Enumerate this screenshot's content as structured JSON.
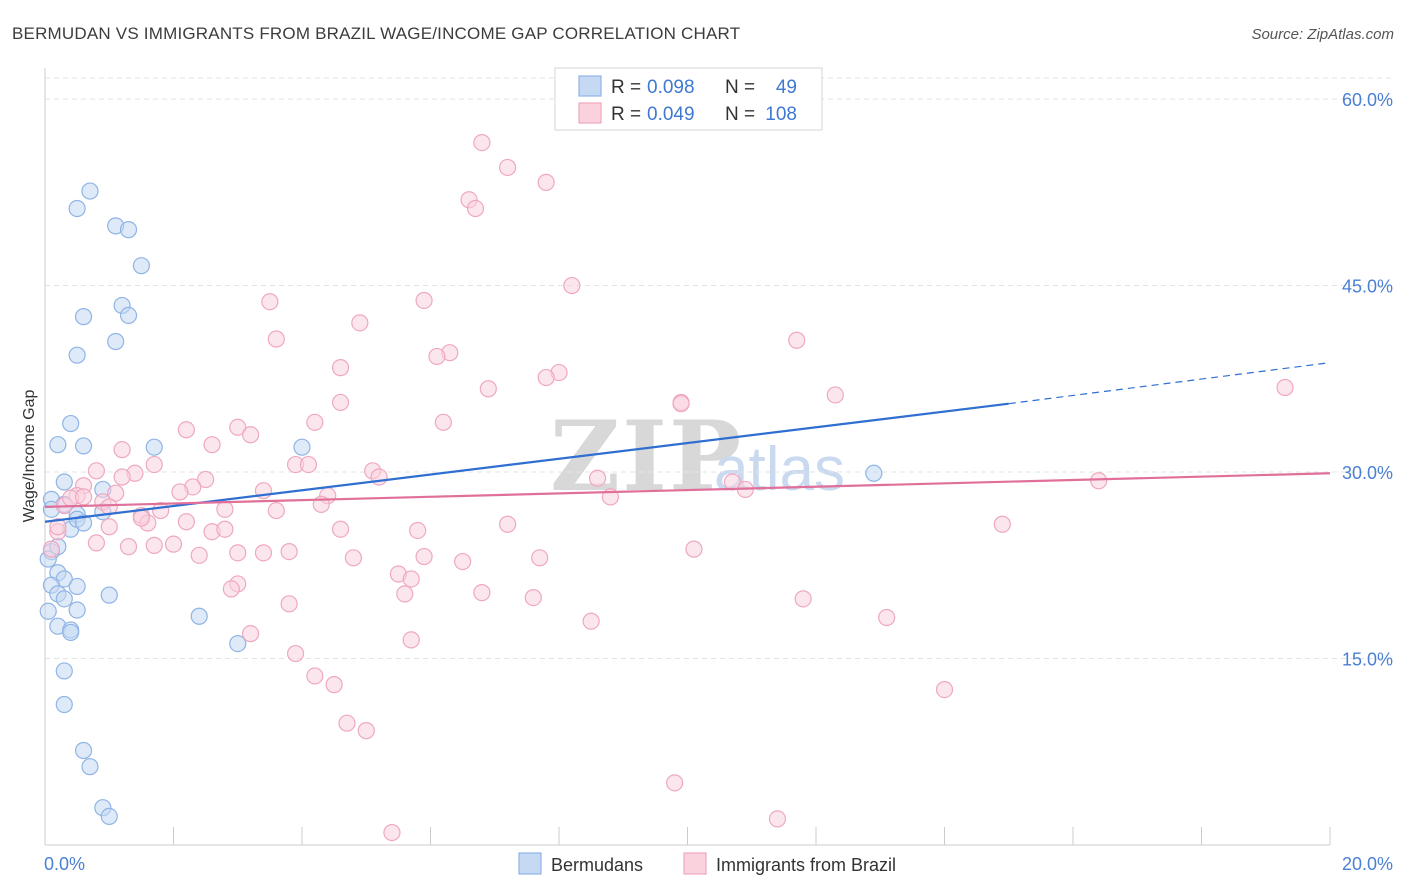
{
  "chart_data": {
    "type": "scatter",
    "title": "BERMUDAN VS IMMIGRANTS FROM BRAZIL WAGE/INCOME GAP CORRELATION CHART",
    "source": "Source: ZipAtlas.com",
    "xlabel": "",
    "ylabel": "Wage/Income Gap",
    "xlim": [
      0,
      20
    ],
    "ylim": [
      0,
      62.5
    ],
    "x_tick_labels": {
      "min": "0.0%",
      "max": "20.0%"
    },
    "y_ticks": [
      {
        "value": 15,
        "label": "15.0%"
      },
      {
        "value": 30,
        "label": "30.0%"
      },
      {
        "value": 45,
        "label": "45.0%"
      },
      {
        "value": 60,
        "label": "60.0%"
      }
    ],
    "grid": true,
    "watermark": {
      "zip": "ZIP",
      "atlas": "atlas"
    },
    "legend_top": [
      {
        "series": "Bermudans",
        "r_label": "R =",
        "r_value": "0.098",
        "n_label": "N =",
        "n_value": "49"
      },
      {
        "series": "Immigrants from Brazil",
        "r_label": "R =",
        "r_value": "0.049",
        "n_label": "N =",
        "n_value": "108"
      }
    ],
    "series": [
      {
        "name": "Bermudans",
        "color": "#8fb4e6",
        "fill": "#c5d9f3",
        "line_color": "#2f6fd1",
        "trend": {
          "x0": 0,
          "y0": 26.0,
          "x1": 15.0,
          "y1": 35.5,
          "x_dash_end": 20,
          "y_dash_end": 38.8
        },
        "points": [
          [
            0.7,
            52.6
          ],
          [
            0.5,
            51.2
          ],
          [
            1.1,
            49.8
          ],
          [
            1.3,
            49.5
          ],
          [
            1.5,
            46.6
          ],
          [
            0.6,
            42.5
          ],
          [
            1.2,
            43.4
          ],
          [
            1.3,
            42.6
          ],
          [
            1.1,
            40.5
          ],
          [
            0.5,
            39.4
          ],
          [
            0.4,
            33.9
          ],
          [
            0.2,
            32.2
          ],
          [
            0.6,
            32.1
          ],
          [
            1.7,
            32.0
          ],
          [
            4.0,
            32.0
          ],
          [
            0.3,
            29.2
          ],
          [
            0.9,
            28.6
          ],
          [
            0.1,
            27.8
          ],
          [
            0.3,
            27.4
          ],
          [
            0.5,
            26.6
          ],
          [
            0.1,
            27.0
          ],
          [
            0.9,
            26.8
          ],
          [
            0.4,
            25.4
          ],
          [
            0.5,
            26.2
          ],
          [
            0.1,
            23.6
          ],
          [
            0.05,
            23.0
          ],
          [
            0.2,
            21.9
          ],
          [
            0.3,
            21.4
          ],
          [
            0.1,
            20.9
          ],
          [
            0.2,
            20.2
          ],
          [
            0.5,
            20.8
          ],
          [
            0.3,
            19.8
          ],
          [
            1.0,
            20.1
          ],
          [
            0.05,
            18.8
          ],
          [
            0.5,
            18.9
          ],
          [
            2.4,
            18.4
          ],
          [
            0.2,
            17.6
          ],
          [
            0.4,
            17.3
          ],
          [
            0.4,
            17.1
          ],
          [
            3.0,
            16.2
          ],
          [
            0.3,
            14.0
          ],
          [
            0.3,
            11.3
          ],
          [
            0.6,
            7.6
          ],
          [
            0.7,
            6.3
          ],
          [
            0.9,
            3.0
          ],
          [
            1.0,
            2.3
          ],
          [
            12.9,
            29.9
          ],
          [
            0.2,
            24.0
          ],
          [
            0.6,
            25.9
          ]
        ]
      },
      {
        "name": "Immigrants from Brazil",
        "color": "#efa8bf",
        "fill": "#f9d2de",
        "line_color": "#e0709a",
        "trend": {
          "x0": 0,
          "y0": 27.2,
          "x1": 20,
          "y1": 29.9
        },
        "points": [
          [
            6.8,
            56.5
          ],
          [
            7.2,
            54.5
          ],
          [
            7.8,
            53.3
          ],
          [
            6.6,
            51.9
          ],
          [
            6.7,
            51.2
          ],
          [
            8.2,
            45.0
          ],
          [
            3.5,
            43.7
          ],
          [
            5.9,
            43.8
          ],
          [
            4.9,
            42.0
          ],
          [
            3.6,
            40.7
          ],
          [
            11.7,
            40.6
          ],
          [
            6.3,
            39.6
          ],
          [
            6.1,
            39.3
          ],
          [
            4.6,
            38.4
          ],
          [
            8.0,
            38.0
          ],
          [
            7.8,
            37.6
          ],
          [
            6.9,
            36.7
          ],
          [
            19.3,
            36.8
          ],
          [
            12.3,
            36.2
          ],
          [
            4.6,
            35.6
          ],
          [
            9.9,
            35.6
          ],
          [
            9.9,
            35.5
          ],
          [
            4.2,
            34.0
          ],
          [
            6.2,
            34.0
          ],
          [
            2.2,
            33.4
          ],
          [
            3.0,
            33.6
          ],
          [
            3.2,
            33.0
          ],
          [
            2.6,
            32.2
          ],
          [
            1.2,
            31.8
          ],
          [
            1.7,
            30.6
          ],
          [
            3.9,
            30.6
          ],
          [
            4.1,
            30.6
          ],
          [
            5.1,
            30.1
          ],
          [
            0.8,
            30.1
          ],
          [
            1.4,
            29.9
          ],
          [
            1.2,
            29.6
          ],
          [
            2.5,
            29.4
          ],
          [
            5.2,
            29.6
          ],
          [
            8.6,
            29.5
          ],
          [
            10.7,
            29.2
          ],
          [
            16.4,
            29.3
          ],
          [
            0.6,
            28.9
          ],
          [
            2.3,
            28.8
          ],
          [
            3.4,
            28.5
          ],
          [
            1.1,
            28.3
          ],
          [
            4.4,
            28.1
          ],
          [
            10.9,
            28.6
          ],
          [
            8.8,
            28.0
          ],
          [
            0.5,
            28.1
          ],
          [
            0.9,
            27.6
          ],
          [
            0.3,
            27.3
          ],
          [
            4.3,
            27.4
          ],
          [
            2.8,
            27.0
          ],
          [
            3.6,
            26.9
          ],
          [
            1.8,
            26.9
          ],
          [
            1.5,
            26.5
          ],
          [
            2.2,
            26.0
          ],
          [
            1.6,
            25.9
          ],
          [
            1.0,
            25.6
          ],
          [
            4.6,
            25.4
          ],
          [
            7.2,
            25.8
          ],
          [
            5.8,
            25.3
          ],
          [
            14.9,
            25.8
          ],
          [
            2.6,
            25.2
          ],
          [
            2.8,
            25.4
          ],
          [
            0.2,
            25.2
          ],
          [
            1.3,
            24.0
          ],
          [
            1.7,
            24.1
          ],
          [
            2.0,
            24.2
          ],
          [
            0.8,
            24.3
          ],
          [
            0.1,
            23.8
          ],
          [
            3.0,
            23.5
          ],
          [
            3.4,
            23.5
          ],
          [
            3.8,
            23.6
          ],
          [
            2.4,
            23.3
          ],
          [
            4.8,
            23.1
          ],
          [
            5.9,
            23.2
          ],
          [
            6.5,
            22.8
          ],
          [
            7.7,
            23.1
          ],
          [
            10.1,
            23.8
          ],
          [
            5.5,
            21.8
          ],
          [
            5.7,
            21.4
          ],
          [
            3.0,
            21.0
          ],
          [
            2.9,
            20.6
          ],
          [
            5.6,
            20.2
          ],
          [
            6.8,
            20.3
          ],
          [
            7.6,
            19.9
          ],
          [
            11.8,
            19.8
          ],
          [
            3.8,
            19.4
          ],
          [
            13.1,
            18.3
          ],
          [
            8.5,
            18.0
          ],
          [
            3.2,
            17.0
          ],
          [
            5.7,
            16.5
          ],
          [
            3.9,
            15.4
          ],
          [
            4.2,
            13.6
          ],
          [
            4.5,
            12.9
          ],
          [
            14.0,
            12.5
          ],
          [
            4.7,
            9.8
          ],
          [
            5.0,
            9.2
          ],
          [
            9.8,
            5.0
          ],
          [
            11.4,
            2.1
          ],
          [
            5.4,
            1.0
          ],
          [
            0.4,
            27.9
          ],
          [
            0.2,
            25.6
          ],
          [
            1.5,
            26.3
          ],
          [
            0.6,
            28.0
          ],
          [
            2.1,
            28.4
          ],
          [
            1.0,
            27.2
          ]
        ]
      }
    ]
  }
}
